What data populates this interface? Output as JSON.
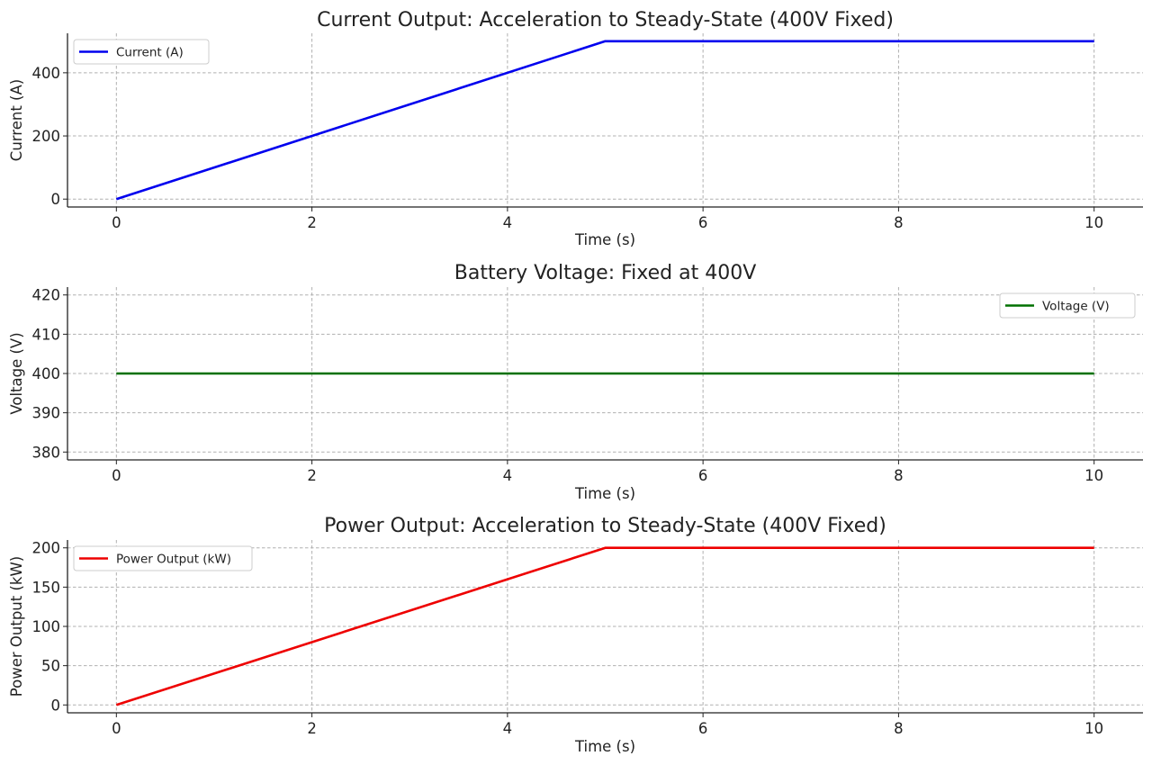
{
  "chart_data": [
    {
      "type": "line",
      "title": "Current Output: Acceleration to Steady-State (400V Fixed)",
      "xlabel": "Time (s)",
      "ylabel": "Current (A)",
      "xlim": [
        -0.5,
        10.5
      ],
      "ylim": [
        -25,
        525
      ],
      "xticks": [
        0,
        2,
        4,
        6,
        8,
        10
      ],
      "yticks": [
        0,
        200,
        400
      ],
      "grid": true,
      "legend_position": "upper-left",
      "series": [
        {
          "name": "Current (A)",
          "color": "#0000ee",
          "x": [
            0,
            5,
            10
          ],
          "y": [
            0,
            500,
            500
          ]
        }
      ]
    },
    {
      "type": "line",
      "title": "Battery Voltage: Fixed at 400V",
      "xlabel": "Time (s)",
      "ylabel": "Voltage (V)",
      "xlim": [
        -0.5,
        10.5
      ],
      "ylim": [
        378,
        422
      ],
      "xticks": [
        0,
        2,
        4,
        6,
        8,
        10
      ],
      "yticks": [
        380,
        390,
        400,
        410,
        420
      ],
      "grid": true,
      "legend_position": "upper-right",
      "series": [
        {
          "name": "Voltage (V)",
          "color": "#007000",
          "x": [
            0,
            10
          ],
          "y": [
            400,
            400
          ]
        }
      ]
    },
    {
      "type": "line",
      "title": "Power Output: Acceleration to Steady-State (400V Fixed)",
      "xlabel": "Time (s)",
      "ylabel": "Power Output (kW)",
      "xlim": [
        -0.5,
        10.5
      ],
      "ylim": [
        -10,
        210
      ],
      "xticks": [
        0,
        2,
        4,
        6,
        8,
        10
      ],
      "yticks": [
        0,
        50,
        100,
        150,
        200
      ],
      "grid": true,
      "legend_position": "upper-left",
      "series": [
        {
          "name": "Power Output (kW)",
          "color": "#ee0000",
          "x": [
            0,
            5,
            10
          ],
          "y": [
            0,
            200,
            200
          ]
        }
      ]
    }
  ]
}
